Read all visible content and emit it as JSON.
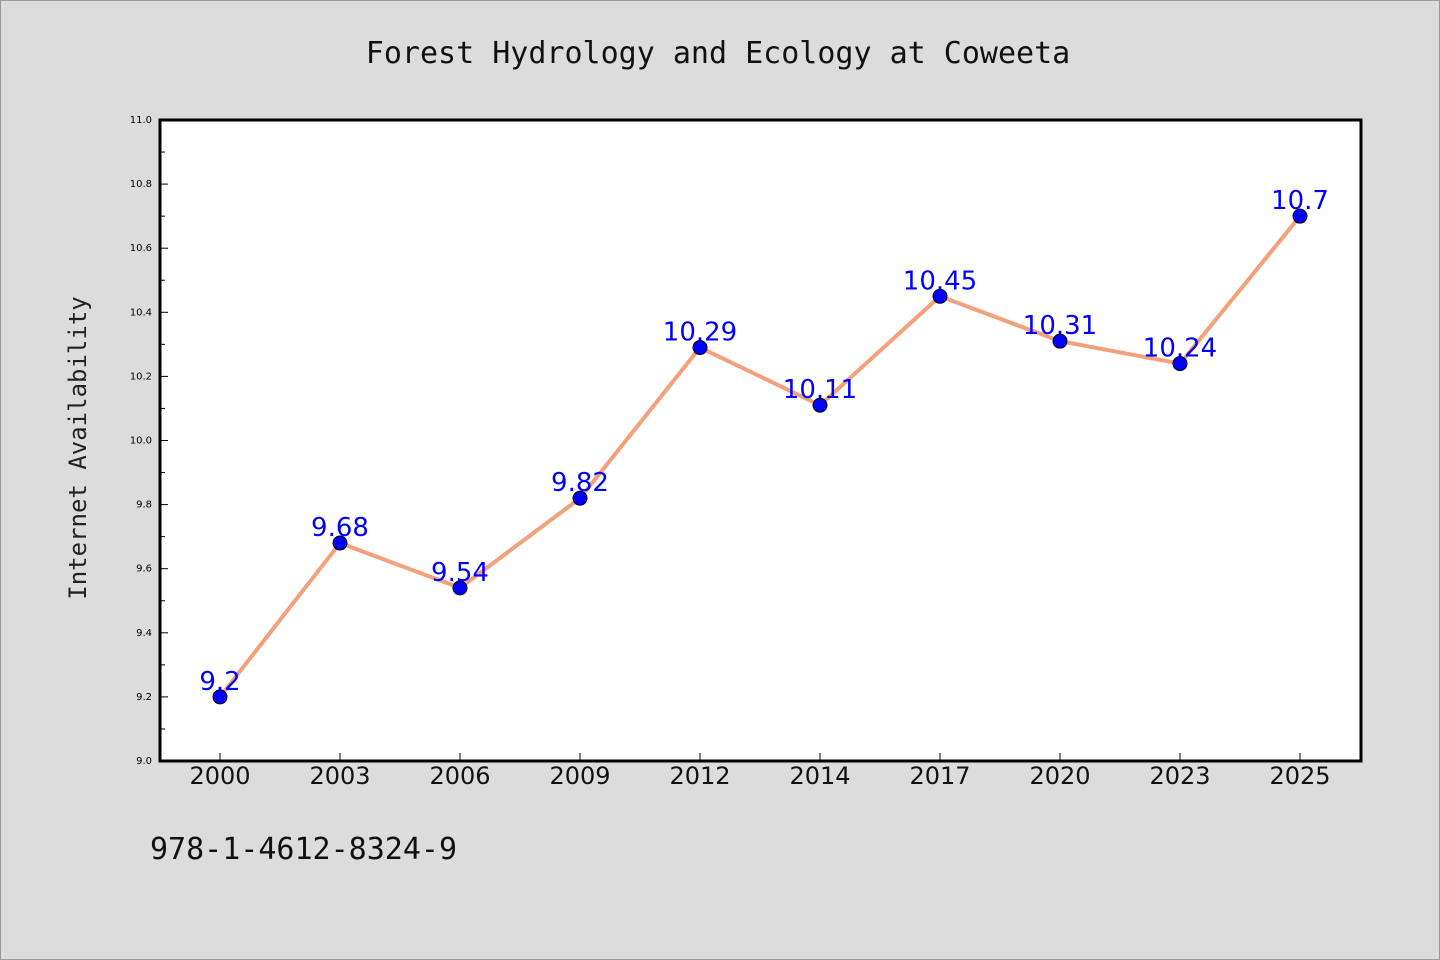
{
  "chart_data": {
    "type": "line",
    "title": "Forest Hydrology and Ecology at Coweeta",
    "xlabel": "",
    "ylabel": "Internet Availability",
    "categories": [
      "2000",
      "2003",
      "2006",
      "2009",
      "2012",
      "2014",
      "2017",
      "2020",
      "2023",
      "2025"
    ],
    "series": [
      {
        "values": [
          9.2,
          9.68,
          9.54,
          9.82,
          10.29,
          10.11,
          10.45,
          10.31,
          10.24,
          10.7
        ]
      }
    ],
    "data_labels": [
      "9.2",
      "9.68",
      "9.54",
      "9.82",
      "10.29",
      "10.11",
      "10.45",
      "10.31",
      "10.24",
      "10.7"
    ],
    "ylim": [
      9.0,
      11.0
    ],
    "yticks": [
      "9.0",
      "9.2",
      "9.4",
      "9.6",
      "9.8",
      "10.0",
      "10.2",
      "10.4",
      "10.6",
      "10.8",
      "11.0"
    ],
    "grid": false,
    "colors": {
      "line": "#f4a07a",
      "marker": "#0000ff",
      "label": "#0000ff",
      "background": "#dcdcdc",
      "plot_bg": "#ffffff"
    }
  },
  "footer_text": "978-1-4612-8324-9"
}
